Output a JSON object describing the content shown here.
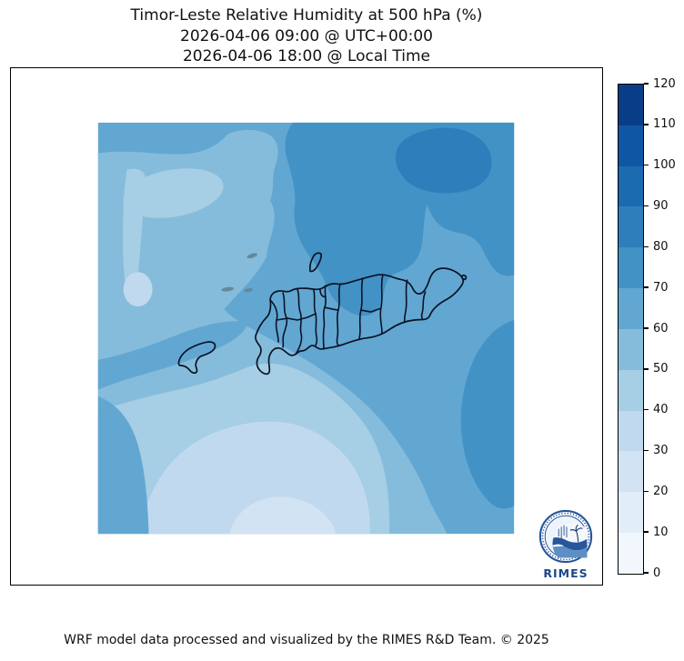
{
  "title": {
    "line1": "Timor-Leste Relative Humidity at 500 hPa (%)",
    "line2": "2026-04-06 09:00 @ UTC+00:00",
    "line3": "2026-04-06 18:00 @ Local Time"
  },
  "footer": "WRF model data processed and visualized by the RIMES R&D Team. © 2025",
  "logo": {
    "label": "RIMES"
  },
  "chart_data": {
    "type": "heatmap",
    "subtype": "filled-contour-map",
    "title": "Timor-Leste Relative Humidity at 500 hPa (%)",
    "valid_time_utc": "2026-04-06 09:00 @ UTC+00:00",
    "valid_time_local": "2026-04-06 18:00 @ Local Time",
    "variable": "Relative Humidity",
    "pressure_level": "500 hPa",
    "units": "%",
    "region": "Timor-Leste and surrounding seas",
    "colorbar": {
      "min": 0,
      "max": 120,
      "orientation": "vertical",
      "position": "right",
      "ticks": [
        0,
        10,
        20,
        30,
        40,
        50,
        60,
        70,
        80,
        90,
        100,
        110,
        120
      ]
    },
    "levels": [
      "0-10",
      "10-20",
      "20-30",
      "30-40",
      "40-50",
      "50-60",
      "60-70",
      "70-80",
      "80-90",
      "90-100",
      "100-110",
      "110-120"
    ],
    "colors": [
      "#f2f7fd",
      "#e1edf8",
      "#d2e3f3",
      "#c1d9ee",
      "#a6cee4",
      "#85bcdb",
      "#61a7d2",
      "#4292c6",
      "#2e7ebc",
      "#1b6bb0",
      "#0f57a4",
      "#0a3d87"
    ],
    "observed_value_range_pct": [
      20,
      90
    ],
    "field_summary": [
      {
        "area": "northeast quadrant (offshore, north of Baucau/Lautem)",
        "range_pct": "70-80",
        "core": "80-90"
      },
      {
        "area": "north-central band above Timor island",
        "range_pct": "70-80"
      },
      {
        "area": "general background",
        "range_pct": "60-70"
      },
      {
        "area": "west-central area (around/above Oecusse)",
        "range_pct": "50-60",
        "core": "40-50"
      },
      {
        "area": "south-central sea",
        "range_pct": "30-50",
        "minimum_pocket": "20-30 at bottom center"
      },
      {
        "area": "southeast offshore blob",
        "range_pct": "70-80"
      }
    ],
    "overlays": [
      "Timor-Leste municipality boundaries",
      "Atauro island outline",
      "Oecusse enclave outline",
      "Jaco islet",
      "small islets northwest of Atauro"
    ]
  }
}
